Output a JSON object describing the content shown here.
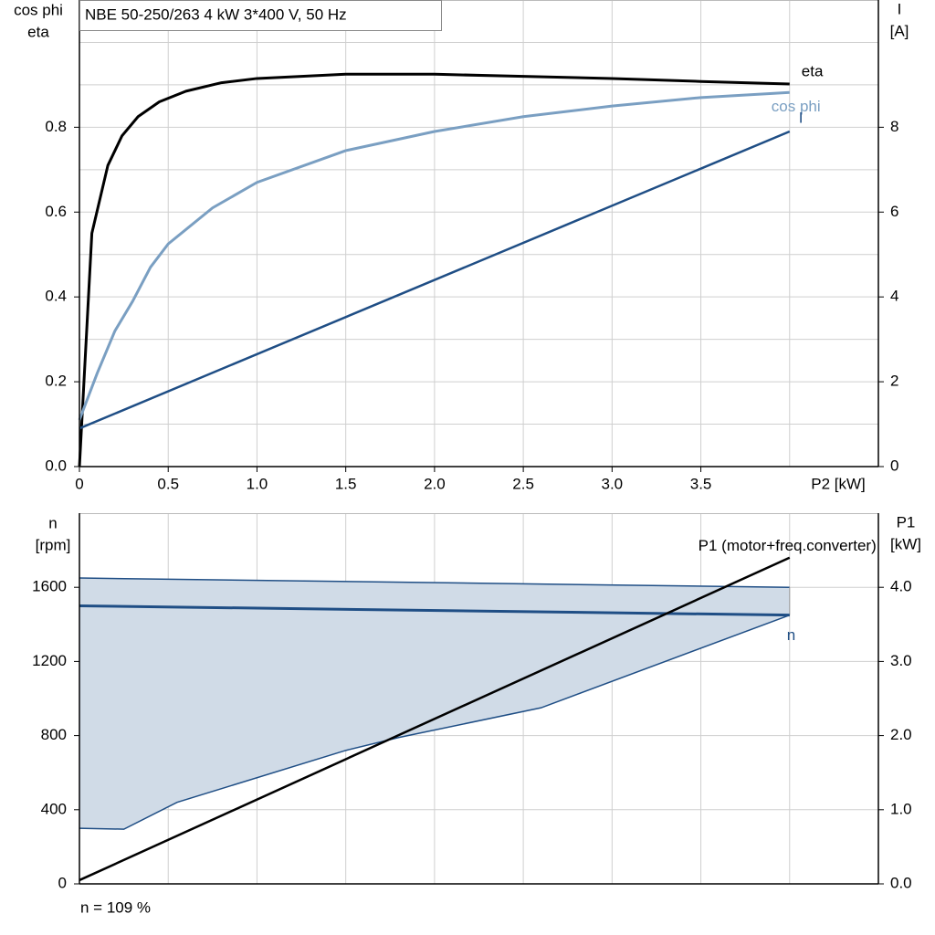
{
  "chart_data": [
    {
      "type": "line",
      "title": "NBE 50-250/263   4 kW   3*400 V, 50 Hz",
      "ylabel": [
        "cos phi",
        "eta"
      ],
      "y2label": [
        "I",
        "[A]"
      ],
      "xlabel": "P2 [kW]",
      "xlim": [
        0,
        4.5
      ],
      "ylim": [
        0,
        1.1
      ],
      "y2lim": [
        0,
        11
      ],
      "xticks": [
        0,
        0.5,
        {
          "value": 1,
          "label": "1.0"
        },
        1.5,
        {
          "value": 2,
          "label": "2.0"
        },
        2.5,
        {
          "value": 3,
          "label": "3.0"
        },
        3.5
      ],
      "xgrid": [
        0.5,
        1,
        1.5,
        2,
        2.5,
        3,
        3.5,
        4
      ],
      "yticks": [
        {
          "value": 0,
          "label": "0.0"
        },
        0.2,
        0.4,
        0.6,
        0.8
      ],
      "ygrid": [
        0.1,
        0.2,
        0.3,
        0.4,
        0.5,
        0.6,
        0.7,
        0.8,
        0.9,
        1.0
      ],
      "y2ticks": [
        0,
        2,
        4,
        6,
        8
      ],
      "grid": true,
      "series": [
        {
          "name": "eta",
          "color": "#000000",
          "x": [
            0,
            0.07,
            0.16,
            0.24,
            0.33,
            0.45,
            0.6,
            0.8,
            1.0,
            1.5,
            2.0,
            2.5,
            3.0,
            3.5,
            4.0
          ],
          "values": [
            0,
            0.55,
            0.71,
            0.78,
            0.825,
            0.86,
            0.885,
            0.905,
            0.915,
            0.925,
            0.925,
            0.92,
            0.915,
            0.908,
            0.902
          ]
        },
        {
          "name": "cos phi",
          "color": "#7a9fc2",
          "x": [
            0,
            0.1,
            0.2,
            0.3,
            0.4,
            0.5,
            0.75,
            1.0,
            1.5,
            2.0,
            2.5,
            3.0,
            3.5,
            4.0
          ],
          "values": [
            0.11,
            0.22,
            0.32,
            0.39,
            0.47,
            0.525,
            0.61,
            0.67,
            0.745,
            0.79,
            0.825,
            0.85,
            0.87,
            0.882
          ]
        },
        {
          "name": "I",
          "color": "#1f4e85",
          "axis": "y2",
          "x": [
            0,
            4.0
          ],
          "values": [
            0.9,
            7.9
          ]
        }
      ]
    },
    {
      "type": "line",
      "ylabel": [
        "n",
        "[rpm]"
      ],
      "y2label": [
        "P1",
        "[kW]"
      ],
      "annotation": "n = 109 %",
      "xlim": [
        0,
        4.5
      ],
      "ylim": [
        0,
        2000
      ],
      "y2lim": [
        0,
        5
      ],
      "xgrid": [
        0.5,
        1,
        1.5,
        2,
        2.5,
        3,
        3.5,
        4
      ],
      "yticks": [
        0,
        400,
        800,
        1200,
        1600
      ],
      "ygrid": [
        400,
        800,
        1200,
        1600
      ],
      "y2ticks": [
        {
          "value": 0,
          "label": "0.0"
        },
        {
          "value": 1,
          "label": "1.0"
        },
        {
          "value": 2,
          "label": "2.0"
        },
        {
          "value": 3,
          "label": "3.0"
        },
        {
          "value": 4,
          "label": "4.0"
        }
      ],
      "grid": true,
      "band": {
        "color": "#d0dbe7",
        "edge": "#1f4e85",
        "upper": {
          "x": [
            0,
            4.0
          ],
          "values": [
            1650,
            1600
          ]
        },
        "lower": {
          "x": [
            0,
            0.25,
            0.55,
            1.5,
            1.8,
            2.6,
            4.0
          ],
          "values": [
            300,
            295,
            440,
            720,
            790,
            950,
            1450
          ]
        }
      },
      "series": [
        {
          "name": "n",
          "color": "#1f4e85",
          "x": [
            0,
            4.0
          ],
          "values": [
            1500,
            1450
          ]
        },
        {
          "name": "P1 (motor+freq.converter)",
          "color": "#000000",
          "axis": "y2",
          "x": [
            0,
            4.0
          ],
          "values": [
            0.05,
            4.4
          ]
        }
      ]
    }
  ]
}
